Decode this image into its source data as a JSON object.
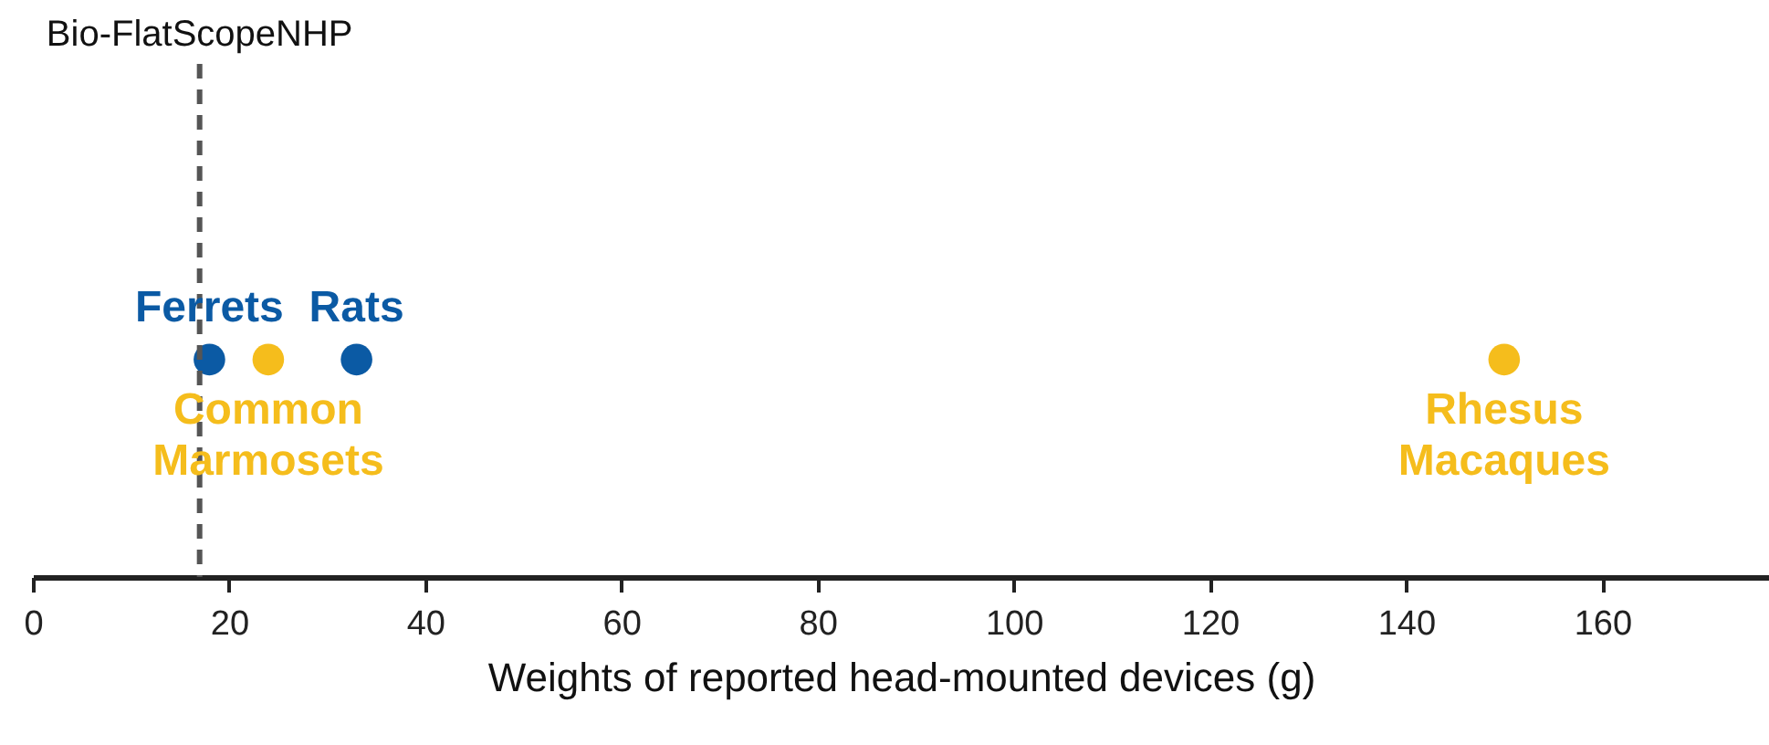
{
  "chart_data": {
    "type": "scatter",
    "orientation": "horizontal",
    "categories": [
      null
    ],
    "xlabel": "Weights of reported head-mounted devices (g)",
    "xlim": [
      0,
      177
    ],
    "xticks": [
      0,
      20,
      40,
      60,
      80,
      100,
      120,
      140,
      160
    ],
    "grid": false,
    "marker": "circle",
    "tick_labels": "x",
    "series": [
      {
        "name": "Ferrets",
        "color": "#0b5aa4",
        "values": [
          18
        ]
      },
      {
        "name": "Common Marmosets",
        "color": "#f5bd1c",
        "values": [
          24
        ]
      },
      {
        "name": "Rats",
        "color": "#0b5aa4",
        "values": [
          33
        ]
      },
      {
        "name": "Rhesus Macaques",
        "color": "#f5bd1c",
        "values": [
          150
        ]
      }
    ],
    "ref_lines": [
      {
        "axis": "x",
        "value": 17,
        "label": "Bio-FlatScopeNHP",
        "line_style": "dashed",
        "color": "#555555"
      }
    ]
  }
}
